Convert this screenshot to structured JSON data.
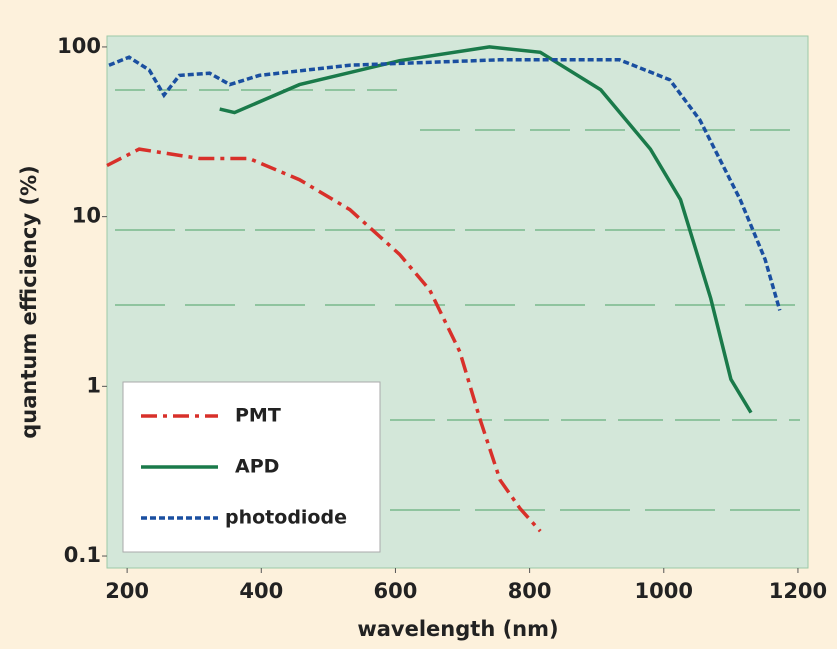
{
  "chart_data": {
    "type": "line",
    "x_label": "wavelength (nm)",
    "y_label": "quantum efficiency (%)",
    "log_y": true,
    "xlim": [
      170,
      1215
    ],
    "ylim": [
      0.085,
      116
    ],
    "xticks": [
      200,
      400,
      600,
      800,
      1000,
      1200
    ],
    "yticks": [
      0.1,
      1,
      10,
      100
    ],
    "legend": "lower left",
    "series": [
      {
        "name": "PMT",
        "color": "#d8302a",
        "linestyle": "dashdot",
        "x": [
          170,
          218,
          308,
          382,
          457,
          532,
          606,
          651,
          696,
          726,
          756,
          786,
          816
        ],
        "values": [
          20,
          25,
          22,
          22,
          16.5,
          11,
          6,
          3.7,
          1.6,
          0.64,
          0.28,
          0.19,
          0.14
        ]
      },
      {
        "name": "APD",
        "color": "#1a7a4a",
        "linestyle": "solid",
        "x": [
          338,
          360,
          457,
          606,
          740,
          816,
          906,
          980,
          1025,
          1070,
          1100,
          1130
        ],
        "values": [
          43,
          41,
          60,
          83,
          100,
          93,
          56,
          25,
          12.6,
          3.3,
          1.1,
          0.7
        ]
      },
      {
        "name": "photodiode",
        "color": "#1a4fa0",
        "linestyle": "dashed",
        "x": [
          173,
          203,
          233,
          255,
          278,
          323,
          353,
          397,
          532,
          755,
          934,
          1009,
          1054,
          1114,
          1151,
          1173
        ],
        "values": [
          78,
          87,
          73,
          52,
          68,
          70,
          60,
          68,
          78,
          84,
          84,
          64,
          37,
          12.6,
          5.6,
          2.8
        ]
      }
    ]
  }
}
